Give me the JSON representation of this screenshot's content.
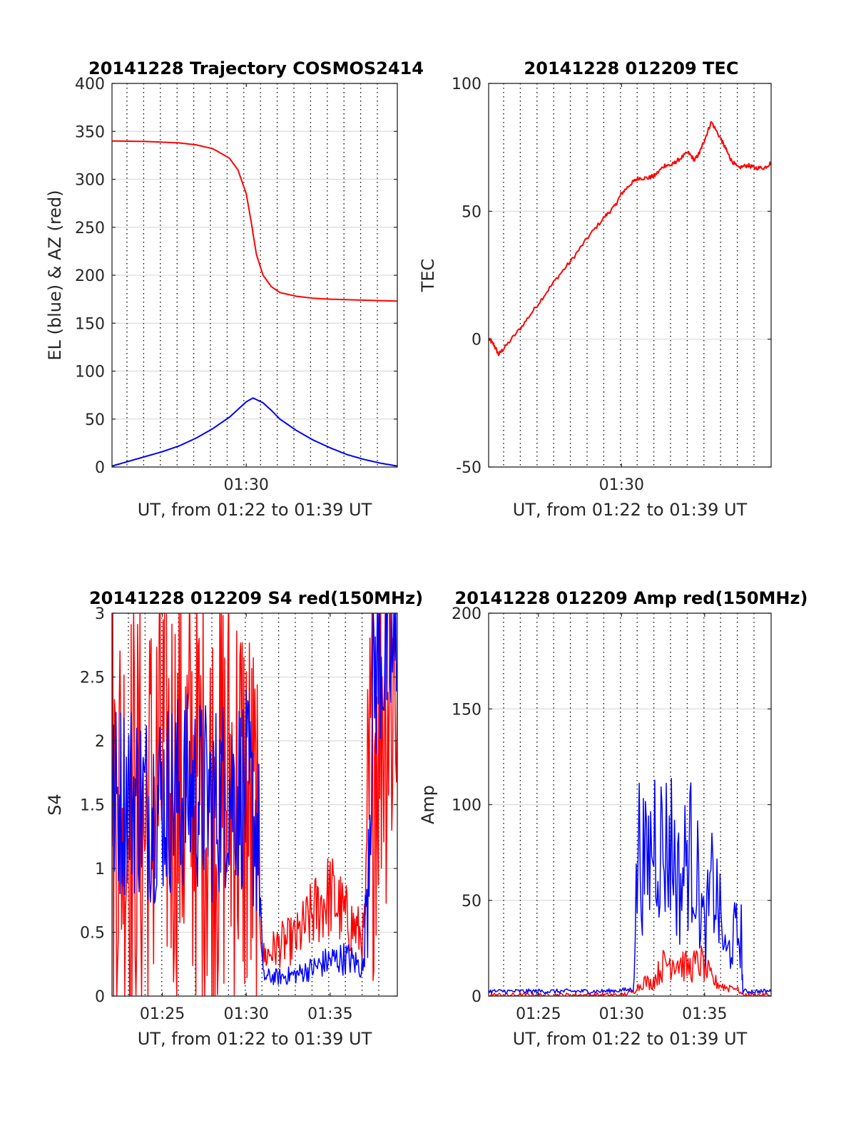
{
  "chart_data": [
    {
      "type": "line",
      "title": "20141228 Trajectory COSMOS2414",
      "xlabel": "UT, from 01:22 to 01:39 UT",
      "ylabel": "EL (blue) & AZ (red)",
      "xlim": [
        "01:22",
        "01:39"
      ],
      "ylim": [
        0,
        400
      ],
      "xticks": [
        {
          "x": "01:30",
          "label": "01:30"
        }
      ],
      "yticks": [
        0,
        50,
        100,
        150,
        200,
        250,
        300,
        350,
        400
      ],
      "grid": true,
      "series": [
        {
          "color": "#ff0000",
          "x": [
            "01:22",
            "01:24",
            "01:26",
            "01:27",
            "01:28",
            "01:29",
            "01:29.5",
            "01:30",
            "01:30.3",
            "01:30.6",
            "01:31",
            "01:31.5",
            "01:32",
            "01:33",
            "01:34",
            "01:35",
            "01:36",
            "01:37",
            "01:38",
            "01:39"
          ],
          "values": [
            340,
            339.5,
            338,
            336,
            332,
            322,
            310,
            285,
            255,
            222,
            200,
            188,
            182,
            178,
            176,
            175,
            174.5,
            174,
            173.5,
            173
          ]
        },
        {
          "color": "#0000ff",
          "x": [
            "01:22",
            "01:23",
            "01:24",
            "01:25",
            "01:26",
            "01:27",
            "01:28",
            "01:29",
            "01:29.5",
            "01:30",
            "01:30.4",
            "01:31",
            "01:31.5",
            "01:32",
            "01:33",
            "01:34",
            "01:35",
            "01:36",
            "01:37",
            "01:38",
            "01:39"
          ],
          "values": [
            1,
            6,
            11,
            16,
            22,
            30,
            40,
            52,
            60,
            68,
            72,
            67,
            59,
            50,
            38,
            28,
            20,
            13,
            8,
            4,
            1
          ]
        }
      ]
    },
    {
      "type": "line",
      "title": "20141228 012209 TEC",
      "xlabel": "UT, from 01:22 to 01:39 UT",
      "ylabel": "TEC",
      "xlim": [
        "01:22",
        "01:39"
      ],
      "ylim": [
        -50,
        100
      ],
      "xticks": [
        {
          "x": "01:30",
          "label": "01:30"
        }
      ],
      "yticks": [
        -50,
        0,
        50,
        100
      ],
      "grid": true,
      "series": [
        {
          "color": "#ff0000",
          "x": [
            "01:22",
            "01:22.3",
            "01:22.6",
            "01:23",
            "01:24",
            "01:25",
            "01:26",
            "01:27",
            "01:28",
            "01:29",
            "01:29.6",
            "01:30",
            "01:30.6",
            "01:31",
            "01:31.6",
            "01:32",
            "01:32.6",
            "01:33",
            "01:33.4",
            "01:34",
            "01:34.4",
            "01:34.7",
            "01:35",
            "01:35.4",
            "01:36",
            "01:36.3",
            "01:36.6",
            "01:37",
            "01:37.6",
            "01:38",
            "01:38.6",
            "01:39"
          ],
          "values": [
            0,
            -2,
            -6,
            -3,
            5,
            14,
            23,
            31,
            40,
            48,
            52,
            57,
            61,
            63,
            63,
            64,
            68,
            68,
            70,
            73,
            70,
            73,
            78,
            85,
            78,
            74,
            70,
            67,
            68,
            67,
            67,
            69
          ]
        }
      ]
    },
    {
      "type": "line",
      "title": "20141228 012209 S4 red(150MHz)",
      "xlabel": "UT, from 01:22 to 01:39 UT",
      "ylabel": "S4",
      "xlim": [
        "01:22",
        "01:39"
      ],
      "ylim": [
        0,
        3
      ],
      "xticks": [
        {
          "x": "01:25",
          "label": "01:25"
        },
        {
          "x": "01:30",
          "label": "01:30"
        },
        {
          "x": "01:35",
          "label": "01:35"
        }
      ],
      "yticks": [
        0,
        0.5,
        1,
        1.5,
        2,
        2.5,
        3
      ],
      "grid": true,
      "series": [
        {
          "color": "#ff0000",
          "x": [
            "01:22",
            "01:23",
            "01:24",
            "01:25",
            "01:26",
            "01:27",
            "01:28",
            "01:29",
            "01:30",
            "01:30.7",
            "01:31",
            "01:32",
            "01:33",
            "01:34",
            "01:35",
            "01:36",
            "01:37",
            "01:37.6",
            "01:38",
            "01:39"
          ],
          "values": [
            1.6,
            1.5,
            1.3,
            1.8,
            1.6,
            1.7,
            1.5,
            1.7,
            1.5,
            1.0,
            0.3,
            0.4,
            0.45,
            0.65,
            0.8,
            0.6,
            0.45,
            2.0,
            2.4,
            2.5
          ]
        },
        {
          "color": "#0000ff",
          "x": [
            "01:22",
            "01:23",
            "01:24",
            "01:25",
            "01:26",
            "01:27",
            "01:28",
            "01:29",
            "01:30",
            "01:30.7",
            "01:31",
            "01:32",
            "01:33",
            "01:34",
            "01:35",
            "01:36",
            "01:37",
            "01:37.6",
            "01:38",
            "01:39"
          ],
          "values": [
            1.5,
            1.6,
            1.5,
            1.55,
            1.6,
            1.6,
            1.5,
            1.65,
            1.6,
            1.3,
            0.15,
            0.15,
            0.17,
            0.22,
            0.28,
            0.3,
            0.22,
            2.5,
            2.7,
            2.6
          ]
        }
      ]
    },
    {
      "type": "line",
      "title": "20141228 012209 Amp red(150MHz)",
      "xlabel": "UT, from 01:22 to 01:39 UT",
      "ylabel": "Amp",
      "xlim": [
        "01:22",
        "01:39"
      ],
      "ylim": [
        0,
        200
      ],
      "xticks": [
        {
          "x": "01:25",
          "label": "01:25"
        },
        {
          "x": "01:30",
          "label": "01:30"
        },
        {
          "x": "01:35",
          "label": "01:35"
        }
      ],
      "yticks": [
        0,
        50,
        100,
        150,
        200
      ],
      "grid": true,
      "series": [
        {
          "color": "#ff0000",
          "x": [
            "01:22",
            "01:30",
            "01:30.8",
            "01:31.3",
            "01:31.8",
            "01:32.5",
            "01:33.2",
            "01:34",
            "01:34.8",
            "01:35.5",
            "01:36.2",
            "01:37",
            "01:37.3",
            "01:39"
          ],
          "values": [
            0,
            0,
            2,
            10,
            8,
            20,
            25,
            18,
            22,
            10,
            6,
            3,
            0,
            0
          ]
        },
        {
          "color": "#0000ff",
          "x": [
            "01:22",
            "01:29",
            "01:30.7",
            "01:31",
            "01:31.5",
            "01:32",
            "01:32.5",
            "01:33",
            "01:33.5",
            "01:34",
            "01:34.4",
            "01:35",
            "01:35.5",
            "01:35.8",
            "01:36.3",
            "01:36.8",
            "01:37.2",
            "01:37.3",
            "01:39"
          ],
          "values": [
            2,
            2,
            3,
            100,
            80,
            110,
            95,
            100,
            70,
            95,
            90,
            40,
            75,
            60,
            25,
            40,
            40,
            2,
            2
          ]
        }
      ]
    }
  ]
}
